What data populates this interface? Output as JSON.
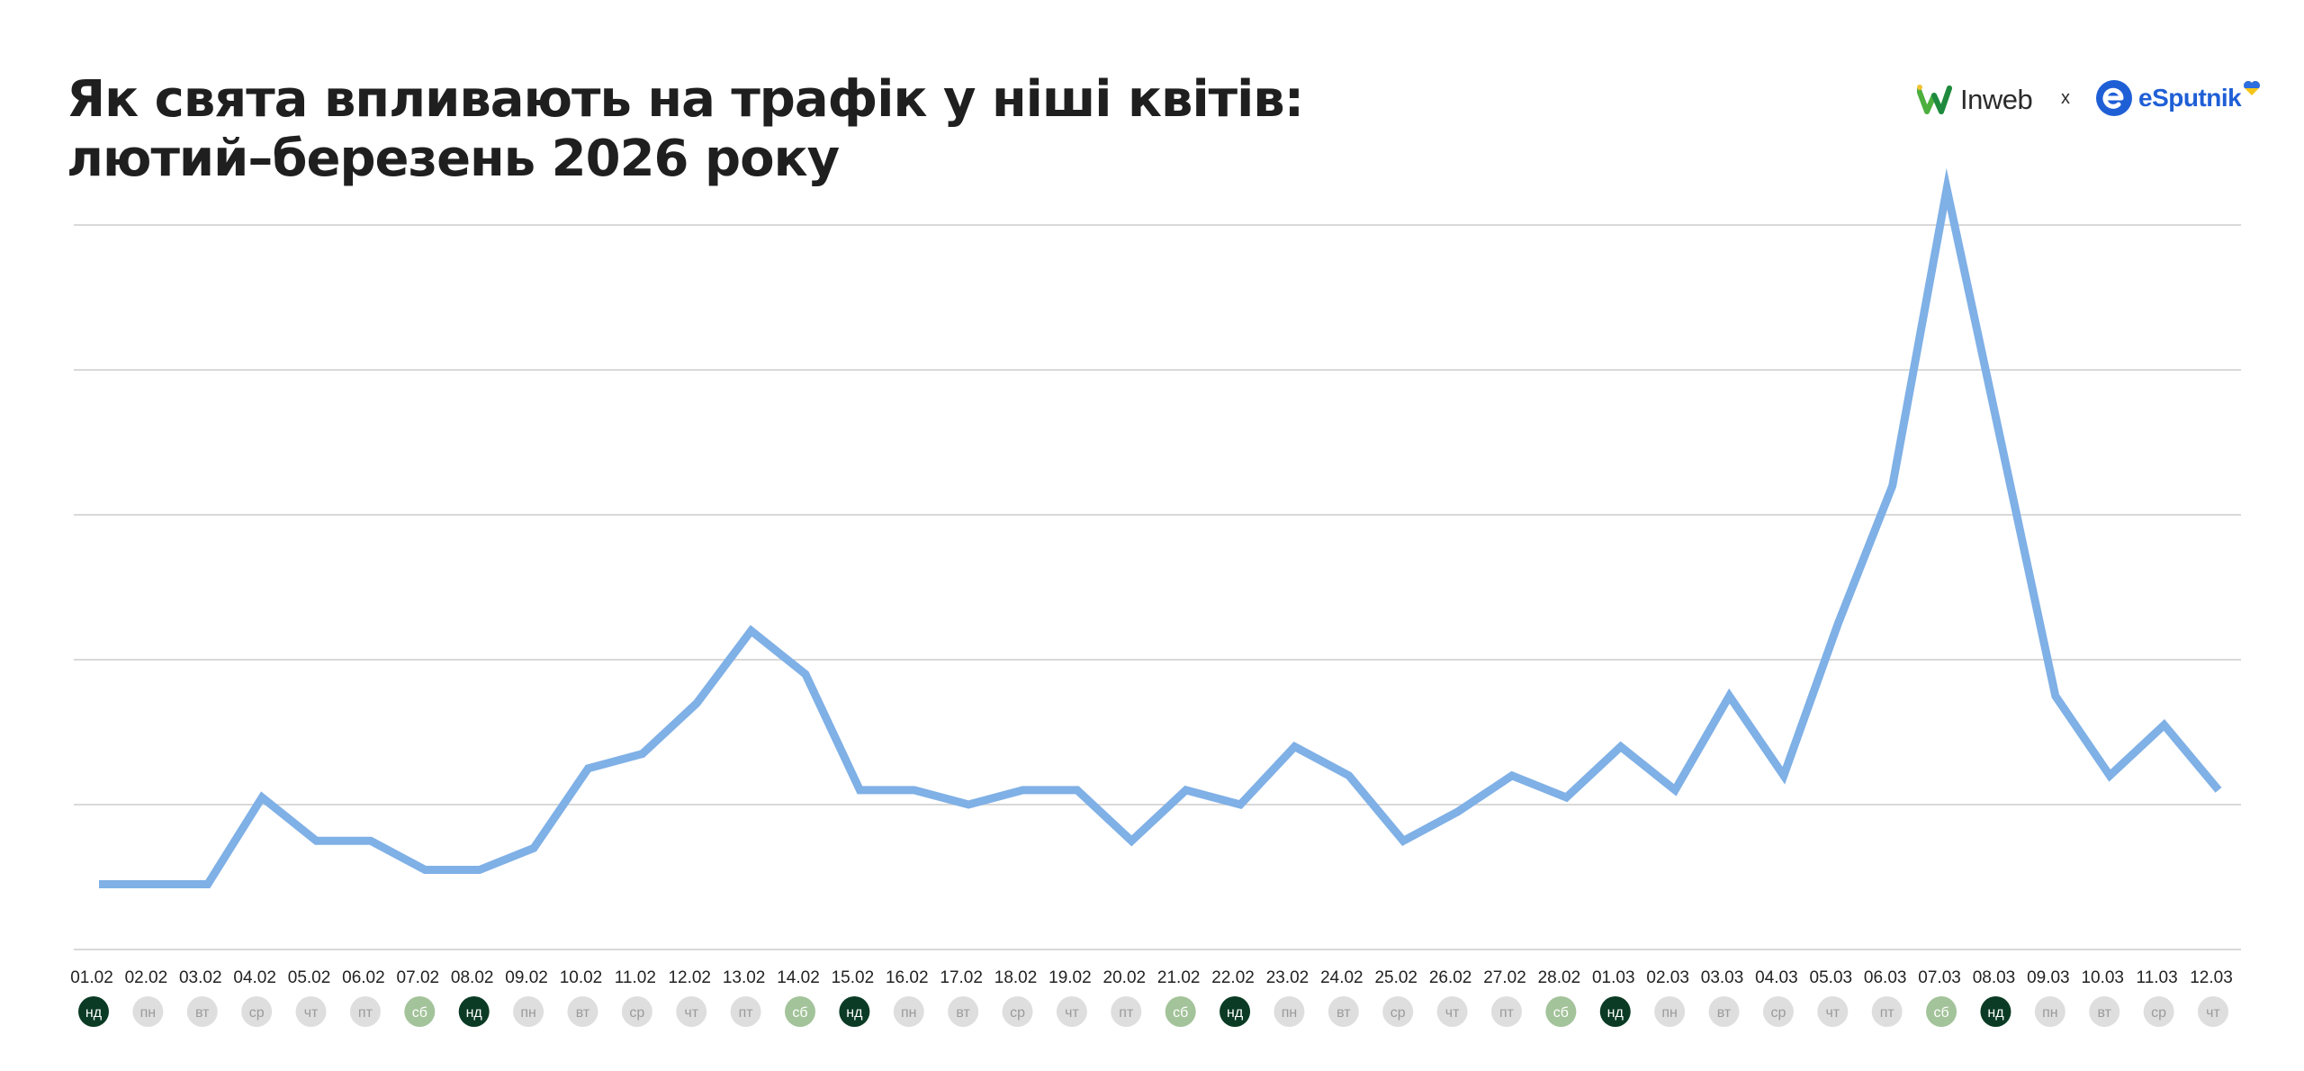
{
  "header": {
    "title_line1": "Як свята впливають на трафік у ніші квітів:",
    "title_line2": "лютий–березень 2026 року"
  },
  "logos": {
    "left_name": "Inweb",
    "separator": "x",
    "right_name": "eSputnik",
    "left_icon": "inweb-w-logo-icon",
    "right_icon": "esputnik-e-logo-icon",
    "heart_icon": "ukraine-heart-icon"
  },
  "colors": {
    "line": "#7fb0e6",
    "grid": "#d9d9d9",
    "weekday_badge": "#dedede",
    "weekday_text": "#9b9b9b",
    "saturday_badge": "#a3c39a",
    "sunday_badge": "#0b3b25",
    "title": "#1f1f1f",
    "brand_green": "#4caf3e",
    "brand_blue": "#1f5fd6"
  },
  "chart_data": {
    "type": "line",
    "title": "Як свята впливають на трафік у ніші квітів: лютий–березень 2026 року",
    "xlabel": "",
    "ylabel": "",
    "y_tick_labels_shown": false,
    "ylim": [
      0,
      100
    ],
    "grid": true,
    "legend": "none",
    "categories": [
      "01.02",
      "02.02",
      "03.02",
      "04.02",
      "05.02",
      "06.02",
      "07.02",
      "08.02",
      "09.02",
      "10.02",
      "11.02",
      "12.02",
      "13.02",
      "14.02",
      "15.02",
      "16.02",
      "17.02",
      "18.02",
      "19.02",
      "20.02",
      "21.02",
      "22.02",
      "23.02",
      "24.02",
      "25.02",
      "26.02",
      "27.02",
      "28.02",
      "01.03",
      "02.03",
      "03.03",
      "04.03",
      "05.03",
      "06.03",
      "07.03",
      "08.03",
      "09.03",
      "10.03",
      "11.03",
      "12.03"
    ],
    "weekdays": [
      "нд",
      "пн",
      "вт",
      "ср",
      "чт",
      "пт",
      "сб",
      "нд",
      "пн",
      "вт",
      "ср",
      "чт",
      "пт",
      "сб",
      "нд",
      "пн",
      "вт",
      "ср",
      "чт",
      "пт",
      "сб",
      "нд",
      "пн",
      "вт",
      "ср",
      "чт",
      "пт",
      "сб",
      "нд",
      "пн",
      "вт",
      "ср",
      "чт",
      "пт",
      "сб",
      "нд",
      "пн",
      "вт",
      "ср",
      "чт"
    ],
    "series": [
      {
        "values": [
          9,
          9,
          9,
          21,
          15,
          15,
          11,
          11,
          14,
          25,
          27,
          34,
          44,
          38,
          22,
          22,
          20,
          22,
          22,
          15,
          22,
          20,
          28,
          24,
          15,
          19,
          24,
          21,
          28,
          22,
          35,
          24,
          45,
          64,
          105,
          70,
          35,
          24,
          31,
          22
        ]
      }
    ]
  }
}
